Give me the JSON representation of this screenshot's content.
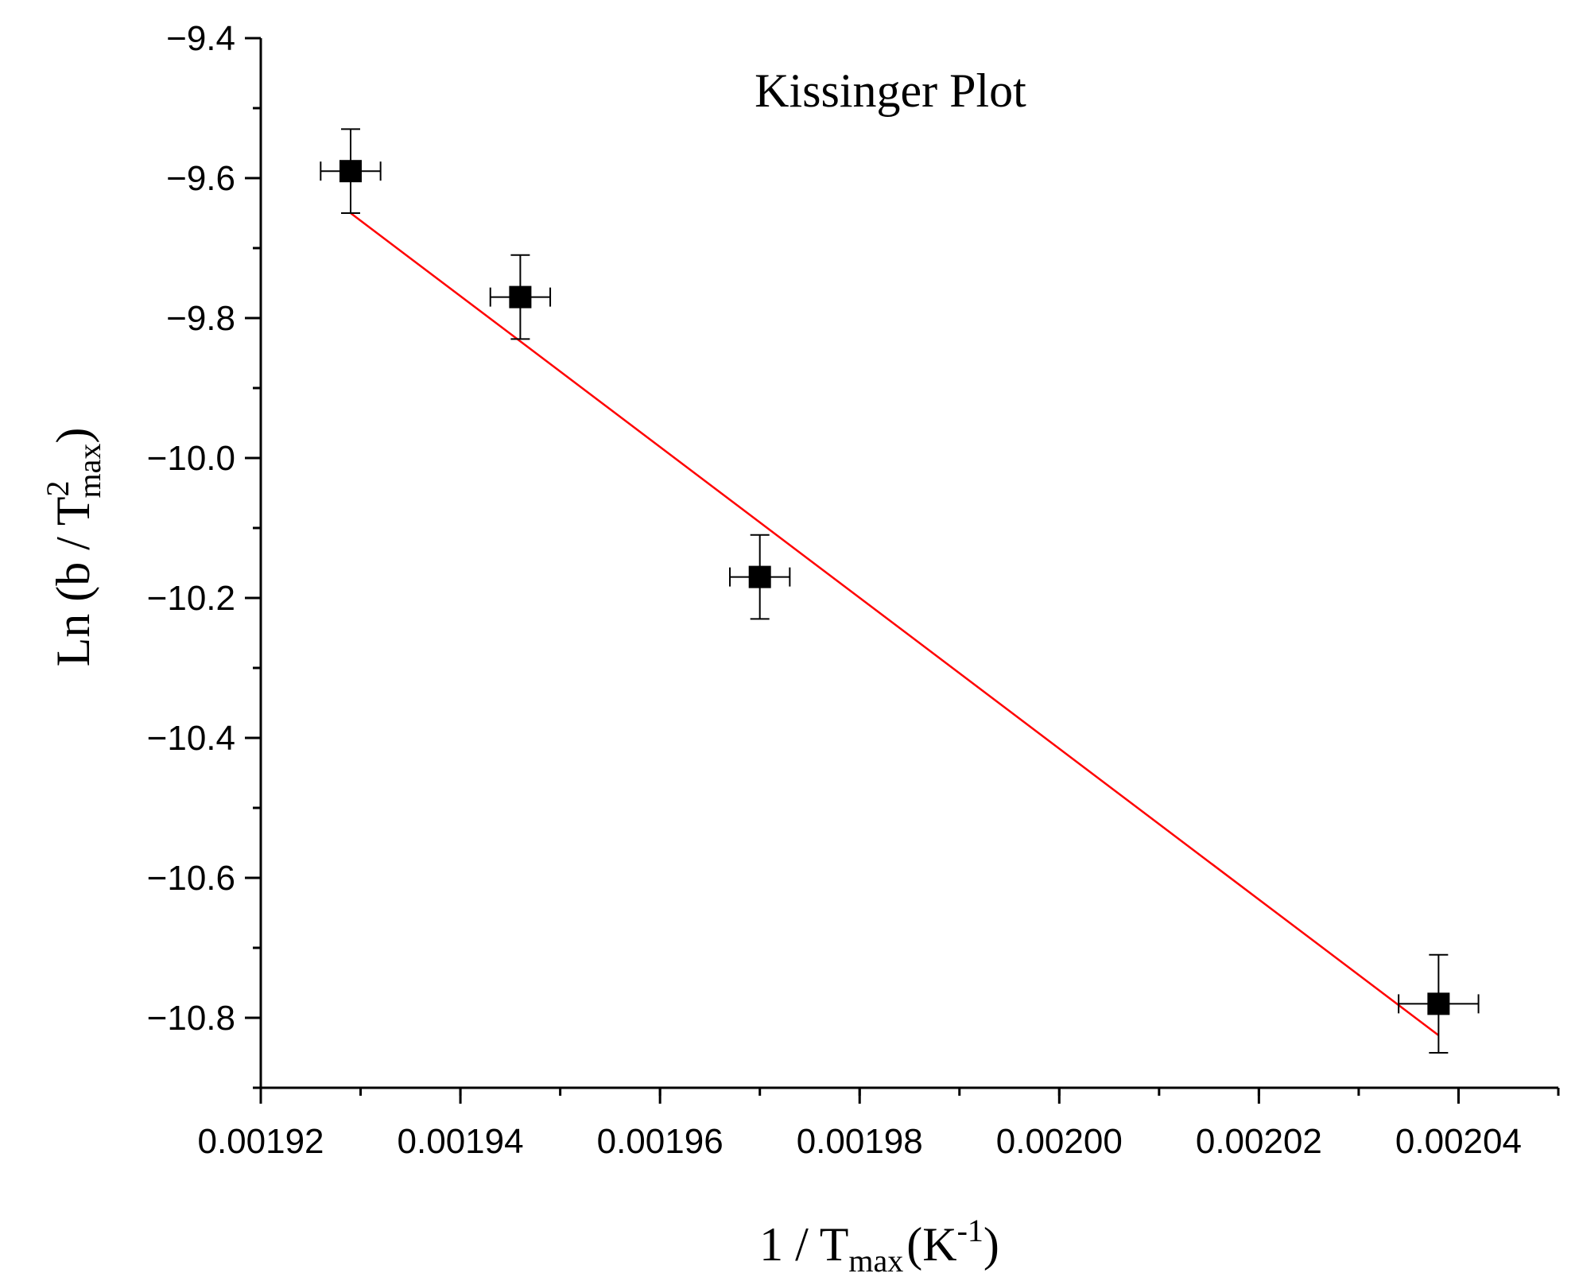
{
  "chart_data": {
    "type": "scatter",
    "title": "Kissinger Plot",
    "xlabel": {
      "main": "1 / T",
      "sub": "max",
      "unit_open": "(K",
      "unit_sup": "-1",
      "unit_close": ")"
    },
    "ylabel": {
      "main": "Ln (b / T",
      "sup": "2",
      "sub": "max",
      "close": ")"
    },
    "xlim": [
      0.00192,
      0.00205
    ],
    "ylim": [
      -10.9,
      -9.4
    ],
    "x_ticks": [
      0.00192,
      0.00194,
      0.00196,
      0.00198,
      0.002,
      0.00202,
      0.00204
    ],
    "x_tick_labels": [
      "0.00192",
      "0.00194",
      "0.00196",
      "0.00198",
      "0.00200",
      "0.00202",
      "0.00204"
    ],
    "y_ticks": [
      -9.4,
      -9.6,
      -9.8,
      -10.0,
      -10.2,
      -10.4,
      -10.6,
      -10.8
    ],
    "y_tick_labels": [
      "−9.4",
      "−9.6",
      "−9.8",
      "−10.0",
      "−10.2",
      "−10.4",
      "−10.6",
      "−10.8"
    ],
    "x_minor_step": 1e-05,
    "y_minor_step": 0.1,
    "grid": false,
    "series": [
      {
        "marker": "square",
        "color": "#000000",
        "points": [
          {
            "x": 0.001929,
            "y": -9.59,
            "xerr": 3e-06,
            "yerr": 0.06
          },
          {
            "x": 0.001946,
            "y": -9.77,
            "xerr": 3e-06,
            "yerr": 0.06
          },
          {
            "x": 0.00197,
            "y": -10.17,
            "xerr": 3e-06,
            "yerr": 0.06
          },
          {
            "x": 0.002038,
            "y": -10.78,
            "xerr": 4e-06,
            "yerr": 0.07
          }
        ]
      }
    ],
    "fit_line": {
      "color": "#ff0000",
      "x": [
        0.001929,
        0.002038
      ],
      "y": [
        -9.65,
        -10.825
      ]
    }
  }
}
